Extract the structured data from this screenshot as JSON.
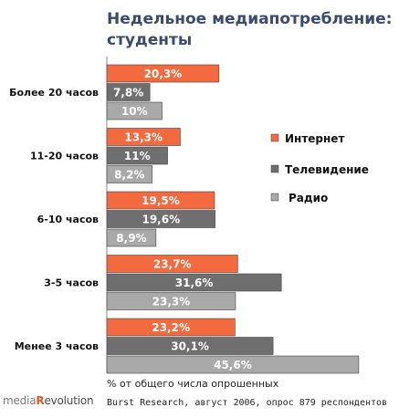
{
  "title_line1": "Недельное медиапотребление:",
  "title_line2": "студенты",
  "note": "% от общего числа опрошенных",
  "source": "Burst Research, август 2006, опрос 879 респондентов",
  "logo": {
    "part1": "media",
    "part2": "R",
    "part3": "evolution"
  },
  "colors": {
    "internet": "#f26a3d",
    "tv": "#6f6f6f",
    "radio": "#a9a9a9"
  },
  "chart_data": {
    "type": "bar",
    "orientation": "horizontal",
    "categories": [
      "Более 20 часов",
      "11-20 часов",
      "6-10 часов",
      "3-5 часов",
      "Менее 3 часов"
    ],
    "series": [
      {
        "name": "Интернет",
        "values": [
          20.3,
          13.3,
          19.5,
          23.7,
          23.2
        ],
        "labels": [
          "20,3%",
          "13,3%",
          "19,5%",
          "23,7%",
          "23,2%"
        ]
      },
      {
        "name": "Телевидение",
        "values": [
          7.8,
          11,
          19.6,
          31.6,
          30.1
        ],
        "labels": [
          "7,8%",
          "11%",
          "19,6%",
          "31,6%",
          "30,1%"
        ]
      },
      {
        "name": "Радио",
        "values": [
          10,
          8.2,
          8.9,
          23.3,
          45.6
        ],
        "labels": [
          "10%",
          "8,2%",
          "8,9%",
          "23,3%",
          "45,6%"
        ]
      }
    ],
    "xlabel": "% от общего числа опрошенных",
    "xlim": [
      0,
      46
    ],
    "legend_position": "right",
    "grid": false
  }
}
